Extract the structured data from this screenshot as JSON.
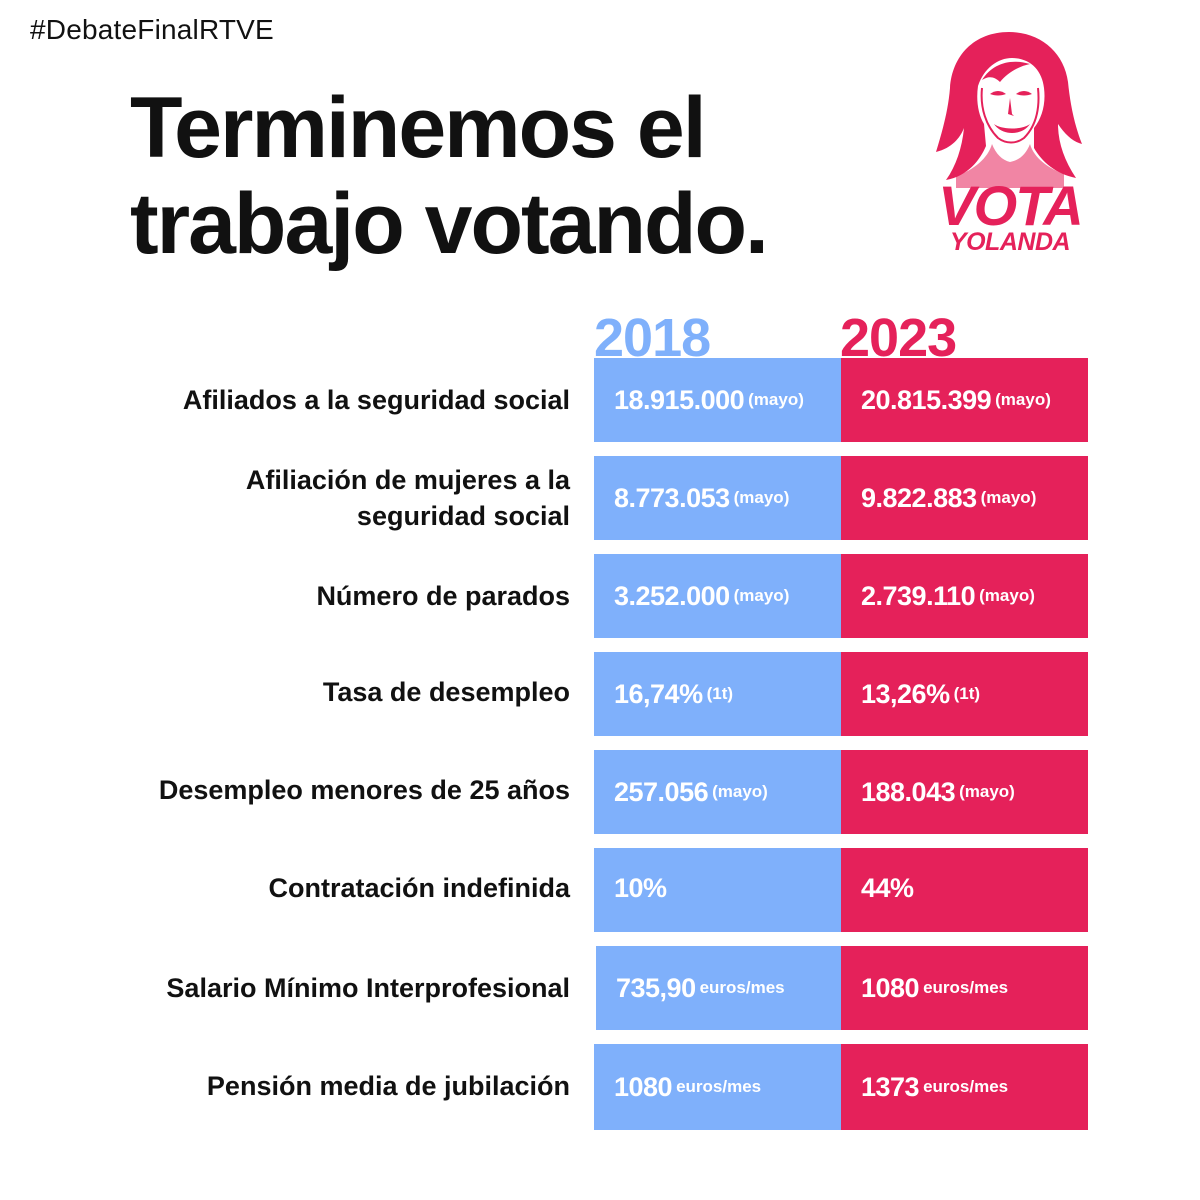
{
  "hashtag": "#DebateFinalRTVE",
  "headline": {
    "line1": "Terminemos el",
    "line2": "trabajo votando."
  },
  "brand": {
    "logo_text_1": "VOTA",
    "logo_text_2": "YOLANDA",
    "accent_color": "#e5215a",
    "portrait_icon": "portrait-illustration"
  },
  "columns": {
    "year_a": "2018",
    "year_b": "2023",
    "color_a": "#7fb0fb",
    "color_b": "#e5215a"
  },
  "rows": [
    {
      "label": "Afiliados a la seguridad social",
      "v2018": "18.915.000",
      "n2018": "(mayo)",
      "v2023": "20.815.399",
      "n2023": "(mayo)"
    },
    {
      "label": "Afiliación de mujeres a la seguridad social",
      "v2018": "8.773.053",
      "n2018": "(mayo)",
      "v2023": "9.822.883",
      "n2023": "(mayo)"
    },
    {
      "label": "Número de parados",
      "v2018": "3.252.000",
      "n2018": "(mayo)",
      "v2023": "2.739.110",
      "n2023": "(mayo)"
    },
    {
      "label": "Tasa de desempleo",
      "v2018": "16,74%",
      "n2018": "(1t)",
      "v2023": "13,26%",
      "n2023": "(1t)"
    },
    {
      "label": "Desempleo menores de 25 años",
      "v2018": "257.056",
      "n2018": "(mayo)",
      "v2023": "188.043",
      "n2023": "(mayo)"
    },
    {
      "label": "Contratación indefinida",
      "v2018": "10%",
      "n2018": "",
      "v2023": "44%",
      "n2023": ""
    },
    {
      "label": "Salario Mínimo Interprofesional",
      "v2018": "735,90",
      "n2018": "euros/mes",
      "v2023": "1080",
      "n2023": "euros/mes"
    },
    {
      "label": "Pensión media de jubilación",
      "v2018": "1080",
      "n2018": "euros/mes",
      "v2023": "1373",
      "n2023": "euros/mes"
    }
  ]
}
